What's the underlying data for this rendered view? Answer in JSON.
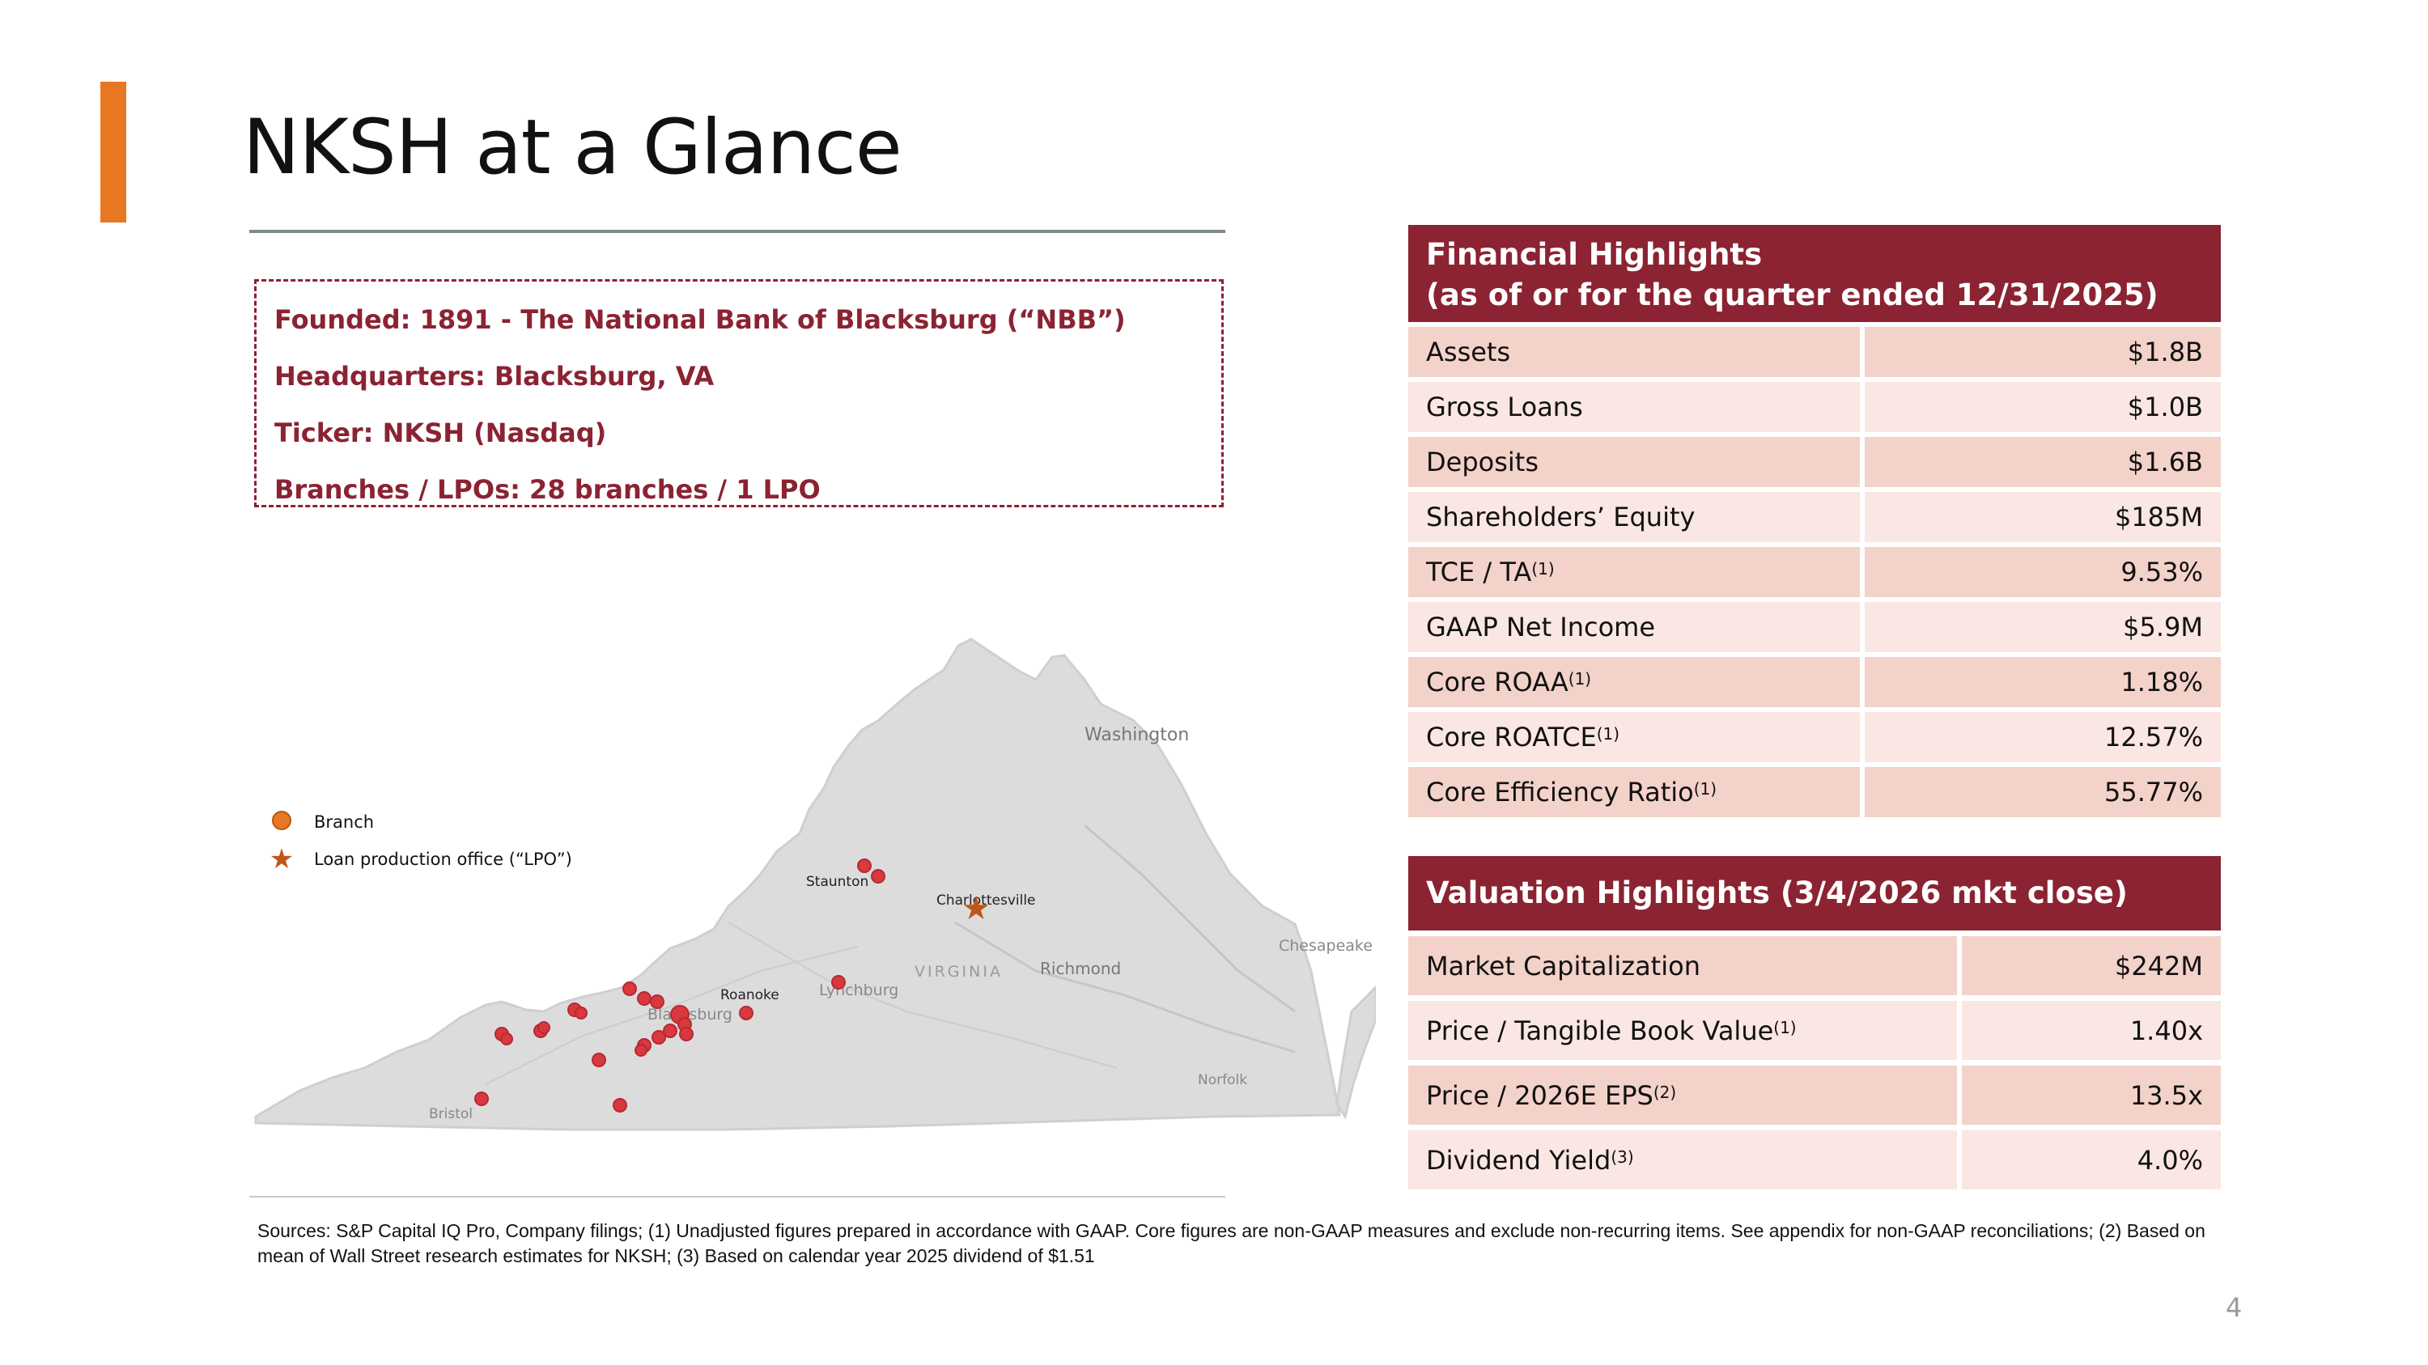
{
  "title": "NKSH at a Glance",
  "info": {
    "founded": "Founded: 1891 - The National Bank of Blacksburg (“NBB”)",
    "headquarters": "Headquarters: Blacksburg, VA",
    "ticker": "Ticker: NKSH (Nasdaq)",
    "branches": "Branches / LPOs: 28 branches / 1 LPO"
  },
  "legend": {
    "branch": "Branch",
    "lpo": "Loan production office (“LPO”)"
  },
  "map": {
    "state_label": "VIRGINIA",
    "cities": {
      "washington": "Washington",
      "staunton": "Staunton",
      "charlottesville": "Charlottesville",
      "richmond": "Richmond",
      "roanoke": "Roanoke",
      "lynchburg": "Lynchburg",
      "blacksburg": "Blacksburg",
      "norfolk": "Norfolk",
      "bristol": "Bristol",
      "chesapeake_bay": "Chesapeake"
    },
    "branch_color": "#d9383f",
    "lpo_color": "#c1561b"
  },
  "financial": {
    "heading_line1": "Financial Highlights",
    "heading_line2": "(as of or for the quarter ended 12/31/2025)",
    "rows": [
      {
        "label": "Assets",
        "sup": "",
        "value": "$1.8B"
      },
      {
        "label": "Gross Loans",
        "sup": "",
        "value": "$1.0B"
      },
      {
        "label": "Deposits",
        "sup": "",
        "value": "$1.6B"
      },
      {
        "label": "Shareholders’ Equity",
        "sup": "",
        "value": "$185M"
      },
      {
        "label": "TCE / TA",
        "sup": "(1)",
        "value": "9.53%"
      },
      {
        "label": "GAAP Net Income",
        "sup": "",
        "value": "$5.9M"
      },
      {
        "label": "Core ROAA",
        "sup": "(1)",
        "value": "1.18%"
      },
      {
        "label": "Core ROATCE",
        "sup": "(1)",
        "value": "12.57%"
      },
      {
        "label": "Core Efficiency Ratio",
        "sup": "(1)",
        "value": "55.77%"
      }
    ]
  },
  "valuation": {
    "heading": "Valuation Highlights (3/4/2026 mkt close)",
    "rows": [
      {
        "label": "Market Capitalization",
        "sup": "",
        "value": "$242M"
      },
      {
        "label": "Price / Tangible Book Value",
        "sup": "(1)",
        "value": "1.40x"
      },
      {
        "label": "Price / 2026E EPS",
        "sup": "(2)",
        "value": "13.5x"
      },
      {
        "label": "Dividend Yield",
        "sup": "(3)",
        "value": "4.0%"
      }
    ]
  },
  "sources": "Sources: S&P Capital IQ Pro, Company filings; (1) Unadjusted figures prepared in accordance with GAAP. Core figures are non-GAAP measures and exclude non-recurring items. See appendix for non-GAAP reconciliations; (2) Based on mean of Wall Street research estimates for NKSH; (3) Based on calendar year 2025 dividend of $1.51",
  "page_number": "4",
  "colors": {
    "accent": "#E87722",
    "brand": "#8B2332",
    "row_odd": "#F3D2CA",
    "row_even": "#FAE6E2"
  }
}
